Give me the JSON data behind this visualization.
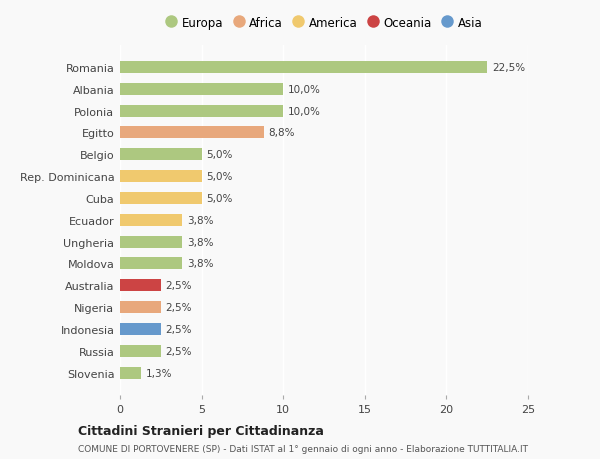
{
  "countries": [
    "Romania",
    "Albania",
    "Polonia",
    "Egitto",
    "Belgio",
    "Rep. Dominicana",
    "Cuba",
    "Ecuador",
    "Ungheria",
    "Moldova",
    "Australia",
    "Nigeria",
    "Indonesia",
    "Russia",
    "Slovenia"
  ],
  "values": [
    22.5,
    10.0,
    10.0,
    8.8,
    5.0,
    5.0,
    5.0,
    3.8,
    3.8,
    3.8,
    2.5,
    2.5,
    2.5,
    2.5,
    1.3
  ],
  "labels": [
    "22,5%",
    "10,0%",
    "10,0%",
    "8,8%",
    "5,0%",
    "5,0%",
    "5,0%",
    "3,8%",
    "3,8%",
    "3,8%",
    "2,5%",
    "2,5%",
    "2,5%",
    "2,5%",
    "1,3%"
  ],
  "colors": [
    "#adc880",
    "#adc880",
    "#adc880",
    "#e8a87c",
    "#adc880",
    "#f0c96e",
    "#f0c96e",
    "#f0c96e",
    "#adc880",
    "#adc880",
    "#cc4444",
    "#e8a87c",
    "#6699cc",
    "#adc880",
    "#adc880"
  ],
  "continent_colors": {
    "Europa": "#adc880",
    "Africa": "#e8a87c",
    "America": "#f0c96e",
    "Oceania": "#cc4444",
    "Asia": "#6699cc"
  },
  "legend_labels": [
    "Europa",
    "Africa",
    "America",
    "Oceania",
    "Asia"
  ],
  "title1": "Cittadini Stranieri per Cittadinanza",
  "title2": "COMUNE DI PORTOVENERE (SP) - Dati ISTAT al 1° gennaio di ogni anno - Elaborazione TUTTITALIA.IT",
  "xlim": [
    0,
    25
  ],
  "xticks": [
    0,
    5,
    10,
    15,
    20,
    25
  ],
  "background_color": "#f9f9f9",
  "bar_height": 0.55
}
